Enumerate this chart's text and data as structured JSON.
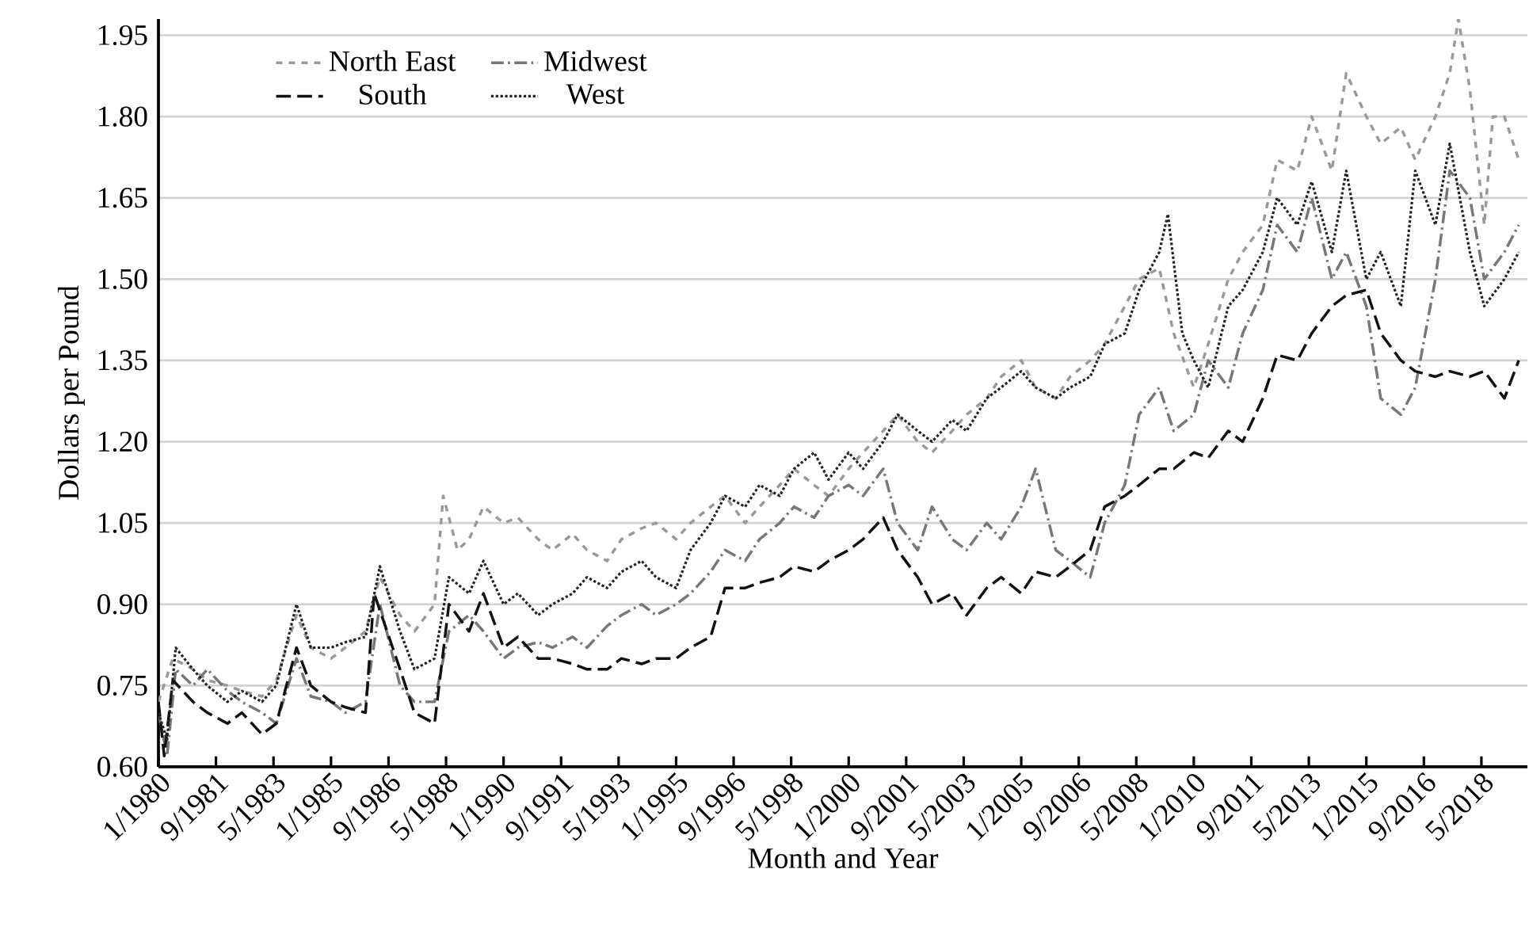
{
  "chart_data": {
    "type": "line",
    "xlabel": "Month and Year",
    "ylabel": "Dollars per Pound",
    "xlim": [
      "1980-01",
      "2019-09"
    ],
    "ylim": [
      0.6,
      1.98
    ],
    "xticks": [
      {
        "value": "1980-01",
        "label": "1/1980"
      },
      {
        "value": "1981-09",
        "label": "9/1981"
      },
      {
        "value": "1983-05",
        "label": "5/1983"
      },
      {
        "value": "1985-01",
        "label": "1/1985"
      },
      {
        "value": "1986-09",
        "label": "9/1986"
      },
      {
        "value": "1988-05",
        "label": "5/1988"
      },
      {
        "value": "1990-01",
        "label": "1/1990"
      },
      {
        "value": "1991-09",
        "label": "9/1991"
      },
      {
        "value": "1993-05",
        "label": "5/1993"
      },
      {
        "value": "1995-01",
        "label": "1/1995"
      },
      {
        "value": "1996-09",
        "label": "9/1996"
      },
      {
        "value": "1998-05",
        "label": "5/1998"
      },
      {
        "value": "2000-01",
        "label": "1/2000"
      },
      {
        "value": "2001-09",
        "label": "9/2001"
      },
      {
        "value": "2003-05",
        "label": "5/2003"
      },
      {
        "value": "2005-01",
        "label": "1/2005"
      },
      {
        "value": "2006-09",
        "label": "9/2006"
      },
      {
        "value": "2008-05",
        "label": "5/2008"
      },
      {
        "value": "2010-01",
        "label": "1/2010"
      },
      {
        "value": "2011-09",
        "label": "9/2011"
      },
      {
        "value": "2013-05",
        "label": "5/2013"
      },
      {
        "value": "2015-01",
        "label": "1/2015"
      },
      {
        "value": "2016-09",
        "label": "9/2016"
      },
      {
        "value": "2018-05",
        "label": "5/2018"
      }
    ],
    "yticks": [
      {
        "value": 0.6,
        "label": "0.60"
      },
      {
        "value": 0.75,
        "label": "0.75"
      },
      {
        "value": 0.9,
        "label": "0.90"
      },
      {
        "value": 1.05,
        "label": "1.05"
      },
      {
        "value": 1.2,
        "label": "1.20"
      },
      {
        "value": 1.35,
        "label": "1.35"
      },
      {
        "value": 1.5,
        "label": "1.50"
      },
      {
        "value": 1.65,
        "label": "1.65"
      },
      {
        "value": 1.8,
        "label": "1.80"
      },
      {
        "value": 1.95,
        "label": "1.95"
      }
    ],
    "grid": "y",
    "legend": "top left",
    "marker": "none",
    "series": [
      {
        "name": "North East",
        "color": "#999999",
        "line_style": "dashed",
        "x": [
          "1980-01",
          "1980-06",
          "1981-01",
          "1981-06",
          "1982-01",
          "1982-06",
          "1983-01",
          "1983-06",
          "1984-01",
          "1984-06",
          "1985-01",
          "1985-06",
          "1986-01",
          "1986-06",
          "1987-01",
          "1987-06",
          "1988-01",
          "1988-04",
          "1988-09",
          "1989-01",
          "1989-06",
          "1990-01",
          "1990-06",
          "1991-01",
          "1991-06",
          "1992-01",
          "1992-06",
          "1993-01",
          "1993-06",
          "1994-01",
          "1994-06",
          "1995-01",
          "1995-06",
          "1996-01",
          "1996-06",
          "1997-01",
          "1997-06",
          "1998-01",
          "1998-06",
          "1999-01",
          "1999-06",
          "2000-01",
          "2000-06",
          "2001-01",
          "2001-06",
          "2002-01",
          "2002-06",
          "2003-01",
          "2003-06",
          "2004-01",
          "2004-06",
          "2005-01",
          "2005-06",
          "2006-01",
          "2006-06",
          "2007-01",
          "2007-06",
          "2008-01",
          "2008-06",
          "2009-01",
          "2009-06",
          "2010-01",
          "2010-06",
          "2011-01",
          "2011-06",
          "2012-01",
          "2012-06",
          "2013-01",
          "2013-06",
          "2014-01",
          "2014-06",
          "2015-01",
          "2015-06",
          "2016-01",
          "2016-06",
          "2017-01",
          "2017-06",
          "2017-09",
          "2018-01",
          "2018-06",
          "2018-09",
          "2019-01",
          "2019-06"
        ],
        "values": [
          0.72,
          0.8,
          0.78,
          0.76,
          0.75,
          0.74,
          0.73,
          0.76,
          0.88,
          0.82,
          0.8,
          0.82,
          0.85,
          0.95,
          0.88,
          0.85,
          0.9,
          1.1,
          1.0,
          1.02,
          1.08,
          1.05,
          1.06,
          1.02,
          1.0,
          1.03,
          1.0,
          0.98,
          1.02,
          1.04,
          1.05,
          1.02,
          1.05,
          1.08,
          1.1,
          1.05,
          1.08,
          1.12,
          1.15,
          1.12,
          1.1,
          1.15,
          1.18,
          1.22,
          1.25,
          1.2,
          1.18,
          1.22,
          1.25,
          1.28,
          1.32,
          1.35,
          1.3,
          1.28,
          1.32,
          1.35,
          1.38,
          1.45,
          1.5,
          1.52,
          1.4,
          1.3,
          1.38,
          1.5,
          1.55,
          1.6,
          1.72,
          1.7,
          1.8,
          1.7,
          1.88,
          1.8,
          1.75,
          1.78,
          1.72,
          1.8,
          1.88,
          1.98,
          1.85,
          1.6,
          1.8,
          1.8,
          1.72
        ]
      },
      {
        "name": "Midwest",
        "color": "#777777",
        "line_style": "dashdot",
        "x": [
          "1980-01",
          "1980-04",
          "1980-07",
          "1981-01",
          "1981-06",
          "1982-01",
          "1982-06",
          "1983-01",
          "1983-06",
          "1984-01",
          "1984-06",
          "1985-01",
          "1985-06",
          "1986-01",
          "1986-06",
          "1987-01",
          "1987-06",
          "1988-01",
          "1988-06",
          "1989-01",
          "1989-06",
          "1990-01",
          "1990-06",
          "1991-01",
          "1991-06",
          "1992-01",
          "1992-06",
          "1993-01",
          "1993-06",
          "1994-01",
          "1994-06",
          "1995-01",
          "1995-06",
          "1996-01",
          "1996-06",
          "1997-01",
          "1997-06",
          "1998-01",
          "1998-06",
          "1999-01",
          "1999-06",
          "2000-01",
          "2000-06",
          "2001-01",
          "2001-06",
          "2002-01",
          "2002-06",
          "2003-01",
          "2003-06",
          "2004-01",
          "2004-06",
          "2005-01",
          "2005-06",
          "2006-01",
          "2006-06",
          "2007-01",
          "2007-06",
          "2008-01",
          "2008-06",
          "2009-01",
          "2009-06",
          "2010-01",
          "2010-06",
          "2011-01",
          "2011-06",
          "2012-01",
          "2012-06",
          "2013-01",
          "2013-06",
          "2014-01",
          "2014-06",
          "2015-01",
          "2015-06",
          "2016-01",
          "2016-06",
          "2017-01",
          "2017-06",
          "2018-01",
          "2018-06",
          "2019-01",
          "2019-06"
        ],
        "values": [
          0.7,
          0.62,
          0.78,
          0.75,
          0.78,
          0.74,
          0.72,
          0.7,
          0.68,
          0.8,
          0.73,
          0.72,
          0.7,
          0.72,
          0.9,
          0.75,
          0.72,
          0.72,
          0.85,
          0.88,
          0.85,
          0.8,
          0.82,
          0.83,
          0.82,
          0.84,
          0.82,
          0.86,
          0.88,
          0.9,
          0.88,
          0.9,
          0.92,
          0.96,
          1.0,
          0.98,
          1.02,
          1.05,
          1.08,
          1.06,
          1.1,
          1.12,
          1.1,
          1.15,
          1.05,
          1.0,
          1.08,
          1.02,
          1.0,
          1.05,
          1.02,
          1.08,
          1.15,
          1.0,
          0.98,
          0.95,
          1.05,
          1.12,
          1.25,
          1.3,
          1.22,
          1.25,
          1.35,
          1.3,
          1.4,
          1.48,
          1.6,
          1.55,
          1.65,
          1.5,
          1.55,
          1.45,
          1.28,
          1.25,
          1.3,
          1.5,
          1.7,
          1.65,
          1.5,
          1.55,
          1.6
        ]
      },
      {
        "name": "South",
        "color": "#111111",
        "line_style": "dashed",
        "x": [
          "1980-01",
          "1980-03",
          "1980-06",
          "1981-01",
          "1981-06",
          "1982-01",
          "1982-06",
          "1983-01",
          "1983-06",
          "1984-01",
          "1984-06",
          "1985-01",
          "1985-06",
          "1986-01",
          "1986-04",
          "1987-01",
          "1987-06",
          "1988-01",
          "1988-06",
          "1989-01",
          "1989-06",
          "1990-01",
          "1990-06",
          "1991-01",
          "1991-06",
          "1992-01",
          "1992-06",
          "1993-01",
          "1993-06",
          "1994-01",
          "1994-06",
          "1995-01",
          "1995-06",
          "1996-01",
          "1996-06",
          "1997-01",
          "1997-06",
          "1998-01",
          "1998-06",
          "1999-01",
          "1999-06",
          "2000-01",
          "2000-06",
          "2001-01",
          "2001-06",
          "2002-01",
          "2002-06",
          "2003-01",
          "2003-06",
          "2004-01",
          "2004-06",
          "2005-01",
          "2005-06",
          "2006-01",
          "2006-06",
          "2007-01",
          "2007-06",
          "2008-01",
          "2008-06",
          "2009-01",
          "2009-06",
          "2010-01",
          "2010-06",
          "2011-01",
          "2011-06",
          "2012-01",
          "2012-06",
          "2013-01",
          "2013-06",
          "2014-01",
          "2014-06",
          "2015-01",
          "2015-06",
          "2016-01",
          "2016-06",
          "2017-01",
          "2017-06",
          "2018-01",
          "2018-06",
          "2019-01",
          "2019-06"
        ],
        "values": [
          0.72,
          0.62,
          0.76,
          0.72,
          0.7,
          0.68,
          0.7,
          0.66,
          0.68,
          0.82,
          0.75,
          0.72,
          0.71,
          0.7,
          0.92,
          0.78,
          0.7,
          0.68,
          0.9,
          0.85,
          0.92,
          0.82,
          0.84,
          0.8,
          0.8,
          0.79,
          0.78,
          0.78,
          0.8,
          0.79,
          0.8,
          0.8,
          0.82,
          0.84,
          0.93,
          0.93,
          0.94,
          0.95,
          0.97,
          0.96,
          0.98,
          1.0,
          1.02,
          1.06,
          1.0,
          0.95,
          0.9,
          0.92,
          0.88,
          0.93,
          0.95,
          0.92,
          0.96,
          0.95,
          0.97,
          1.0,
          1.08,
          1.1,
          1.12,
          1.15,
          1.15,
          1.18,
          1.17,
          1.22,
          1.2,
          1.28,
          1.36,
          1.35,
          1.4,
          1.45,
          1.47,
          1.48,
          1.4,
          1.35,
          1.33,
          1.32,
          1.33,
          1.32,
          1.33,
          1.28,
          1.35
        ]
      },
      {
        "name": "West",
        "color": "#222222",
        "line_style": "dotted",
        "x": [
          "1980-01",
          "1980-04",
          "1980-07",
          "1981-01",
          "1981-06",
          "1982-01",
          "1982-06",
          "1983-01",
          "1983-06",
          "1984-01",
          "1984-06",
          "1985-01",
          "1985-06",
          "1986-01",
          "1986-06",
          "1987-01",
          "1987-06",
          "1988-01",
          "1988-06",
          "1989-01",
          "1989-06",
          "1990-01",
          "1990-06",
          "1991-01",
          "1991-06",
          "1992-01",
          "1992-06",
          "1993-01",
          "1993-06",
          "1994-01",
          "1994-06",
          "1995-01",
          "1995-06",
          "1996-01",
          "1996-06",
          "1997-01",
          "1997-06",
          "1998-01",
          "1998-06",
          "1999-01",
          "1999-06",
          "2000-01",
          "2000-06",
          "2001-01",
          "2001-06",
          "2002-01",
          "2002-06",
          "2003-01",
          "2003-06",
          "2004-01",
          "2004-06",
          "2005-01",
          "2005-06",
          "2006-01",
          "2006-06",
          "2007-01",
          "2007-06",
          "2008-01",
          "2008-06",
          "2009-01",
          "2009-04",
          "2009-09",
          "2010-01",
          "2010-06",
          "2011-01",
          "2011-06",
          "2012-01",
          "2012-06",
          "2013-01",
          "2013-06",
          "2014-01",
          "2014-06",
          "2015-01",
          "2015-06",
          "2016-01",
          "2016-06",
          "2017-01",
          "2017-06",
          "2018-01",
          "2018-06",
          "2019-01",
          "2019-06"
        ],
        "values": [
          0.7,
          0.65,
          0.82,
          0.78,
          0.75,
          0.72,
          0.74,
          0.72,
          0.75,
          0.9,
          0.82,
          0.82,
          0.83,
          0.84,
          0.97,
          0.85,
          0.78,
          0.8,
          0.95,
          0.92,
          0.98,
          0.9,
          0.92,
          0.88,
          0.9,
          0.92,
          0.95,
          0.93,
          0.96,
          0.98,
          0.95,
          0.93,
          1.0,
          1.05,
          1.1,
          1.08,
          1.12,
          1.1,
          1.15,
          1.18,
          1.13,
          1.18,
          1.15,
          1.2,
          1.25,
          1.22,
          1.2,
          1.24,
          1.22,
          1.28,
          1.3,
          1.33,
          1.3,
          1.28,
          1.3,
          1.32,
          1.38,
          1.4,
          1.48,
          1.55,
          1.62,
          1.4,
          1.35,
          1.3,
          1.45,
          1.48,
          1.55,
          1.65,
          1.6,
          1.68,
          1.55,
          1.7,
          1.5,
          1.55,
          1.45,
          1.7,
          1.6,
          1.75,
          1.55,
          1.45,
          1.5,
          1.55
        ]
      }
    ]
  }
}
